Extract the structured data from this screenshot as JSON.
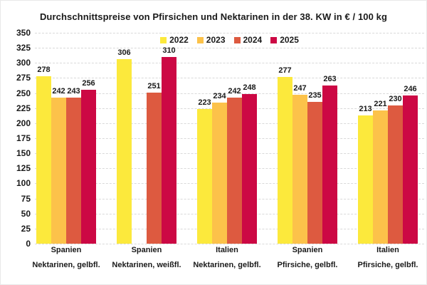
{
  "chart_data": {
    "type": "bar",
    "title": "Durchschnittspreise von Pfirsichen und Nektarinen in der 38. KW in € / 100 kg",
    "categories": [
      {
        "country": "Spanien",
        "variety": "Nektarinen, gelbfl."
      },
      {
        "country": "Spanien",
        "variety": "Nektarinen, weißfl."
      },
      {
        "country": "Italien",
        "variety": "Nektarinen, gelbfl."
      },
      {
        "country": "Spanien",
        "variety": "Pfirsiche, gelbfl."
      },
      {
        "country": "Italien",
        "variety": "Pfirsiche, gelbfl."
      }
    ],
    "series": [
      {
        "name": "2022",
        "color": "#FCE93C",
        "values": [
          278,
          306,
          223,
          277,
          213
        ]
      },
      {
        "name": "2023",
        "color": "#FCC24A",
        "values": [
          242,
          null,
          234,
          247,
          221
        ]
      },
      {
        "name": "2024",
        "color": "#DD5A40",
        "values": [
          243,
          251,
          242,
          235,
          230
        ]
      },
      {
        "name": "2025",
        "color": "#CC0844",
        "values": [
          256,
          310,
          248,
          263,
          246
        ]
      }
    ],
    "ylim": [
      0,
      350
    ],
    "ytick_step": 25,
    "grid": true,
    "legend_position": "top-center",
    "text_color": "#1a1a1a",
    "gridline_color": "#d9d9d9"
  }
}
